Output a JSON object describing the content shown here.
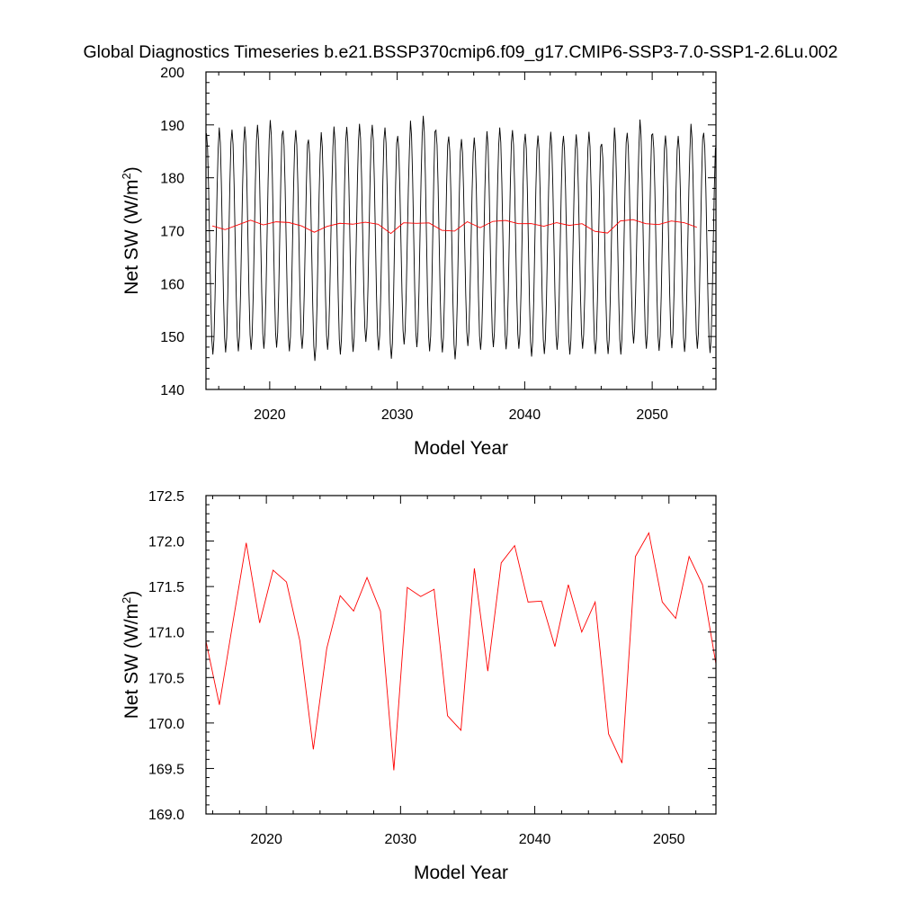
{
  "title": "Global Diagnostics Timeseries b.e21.BSSP370cmip6.f09_g17.CMIP6-SSP3-7.0-SSP1-2.6Lu.002",
  "colors": {
    "monthly": "#000000",
    "annual": "#ff0000",
    "axis": "#000000"
  },
  "chart_data": [
    {
      "type": "line",
      "xlabel": "Model Year",
      "ylabel_main": "Net SW (W/m",
      "ylabel_sup": "2",
      "ylabel_close": ")",
      "xlim": [
        2015,
        2055
      ],
      "ylim": [
        140,
        200
      ],
      "x_ticks": [
        2020,
        2030,
        2040,
        2050
      ],
      "x_tick_labels": [
        "2020",
        "2030",
        "2040",
        "2050"
      ],
      "y_ticks": [
        140,
        150,
        160,
        170,
        180,
        190,
        200
      ],
      "y_tick_labels": [
        "140",
        "150",
        "160",
        "170",
        "180",
        "190",
        "200"
      ],
      "grid": false,
      "series": [
        {
          "style": "monthly",
          "x_start": 2015.0417,
          "x_step": 0.0833333,
          "annual_max": [
            188.4,
            189.5,
            189.1,
            189.7,
            190.0,
            190.9,
            188.9,
            189.0,
            187.2,
            188.6,
            189.7,
            189.6,
            190.2,
            190.0,
            189.5,
            187.9,
            190.8,
            191.7,
            189.0,
            187.8,
            187.3,
            187.6,
            188.8,
            189.5,
            189.0,
            188.3,
            188.0,
            188.7,
            187.9,
            188.2,
            188.7,
            186.4,
            189.5,
            188.5,
            191.0,
            188.3,
            188.0,
            187.9,
            190.2,
            188.5
          ],
          "annual_min": [
            146.6,
            147.0,
            147.2,
            147.5,
            147.7,
            147.9,
            147.2,
            147.7,
            145.4,
            147.5,
            146.6,
            147.1,
            149.0,
            147.4,
            145.8,
            148.5,
            148.0,
            147.2,
            147.0,
            145.7,
            148.2,
            147.5,
            148.0,
            147.6,
            147.7,
            146.2,
            146.7,
            147.5,
            146.6,
            147.7,
            146.7,
            146.7,
            146.6,
            148.7,
            147.7,
            147.3,
            147.8,
            147.1,
            147.7,
            146.9
          ]
        },
        {
          "style": "annual",
          "x": [
            2015.5,
            2016.5,
            2017.5,
            2018.5,
            2019.5,
            2020.5,
            2021.5,
            2022.5,
            2023.5,
            2024.5,
            2025.5,
            2026.5,
            2027.5,
            2028.5,
            2029.5,
            2030.5,
            2031.5,
            2032.5,
            2033.5,
            2034.5,
            2035.5,
            2036.5,
            2037.5,
            2038.5,
            2039.5,
            2040.5,
            2041.5,
            2042.5,
            2043.5,
            2044.5,
            2045.5,
            2046.5,
            2047.5,
            2048.5,
            2049.5,
            2050.5,
            2051.5,
            2052.5,
            2053.5
          ],
          "y": [
            170.9,
            170.2,
            171.1,
            171.98,
            171.1,
            171.68,
            171.55,
            170.9,
            169.71,
            170.82,
            171.4,
            171.23,
            171.6,
            171.23,
            169.48,
            171.49,
            171.39,
            171.47,
            170.08,
            169.92,
            171.7,
            170.57,
            171.76,
            171.95,
            171.33,
            171.34,
            170.84,
            171.52,
            171.0,
            171.33,
            169.88,
            169.56,
            171.83,
            172.09,
            171.33,
            171.15,
            171.83,
            171.52,
            170.65
          ]
        }
      ]
    },
    {
      "type": "line",
      "xlabel": "Model Year",
      "ylabel_main": "Net SW (W/m",
      "ylabel_sup": "2",
      "ylabel_close": ")",
      "xlim": [
        2015.5,
        2053.5
      ],
      "ylim": [
        169.0,
        172.5
      ],
      "x_ticks": [
        2020,
        2030,
        2040,
        2050
      ],
      "x_tick_labels": [
        "2020",
        "2030",
        "2040",
        "2050"
      ],
      "y_ticks": [
        169.0,
        169.5,
        170.0,
        170.5,
        171.0,
        171.5,
        172.0,
        172.5
      ],
      "y_tick_labels": [
        "169.0",
        "169.5",
        "170.0",
        "170.5",
        "171.0",
        "171.5",
        "172.0",
        "172.5"
      ],
      "grid": false,
      "series": [
        {
          "style": "annual",
          "x": [
            2015.5,
            2016.5,
            2017.5,
            2018.5,
            2019.5,
            2020.5,
            2021.5,
            2022.5,
            2023.5,
            2024.5,
            2025.5,
            2026.5,
            2027.5,
            2028.5,
            2029.5,
            2030.5,
            2031.5,
            2032.5,
            2033.5,
            2034.5,
            2035.5,
            2036.5,
            2037.5,
            2038.5,
            2039.5,
            2040.5,
            2041.5,
            2042.5,
            2043.5,
            2044.5,
            2045.5,
            2046.5,
            2047.5,
            2048.5,
            2049.5,
            2050.5,
            2051.5,
            2052.5,
            2053.5
          ],
          "y": [
            170.9,
            170.2,
            171.1,
            171.98,
            171.1,
            171.68,
            171.55,
            170.9,
            169.71,
            170.82,
            171.4,
            171.23,
            171.6,
            171.23,
            169.48,
            171.49,
            171.39,
            171.47,
            170.08,
            169.92,
            171.7,
            170.57,
            171.76,
            171.95,
            171.33,
            171.34,
            170.84,
            171.52,
            171.0,
            171.33,
            169.88,
            169.56,
            171.83,
            172.09,
            171.33,
            171.15,
            171.83,
            171.52,
            170.65
          ]
        }
      ]
    }
  ]
}
